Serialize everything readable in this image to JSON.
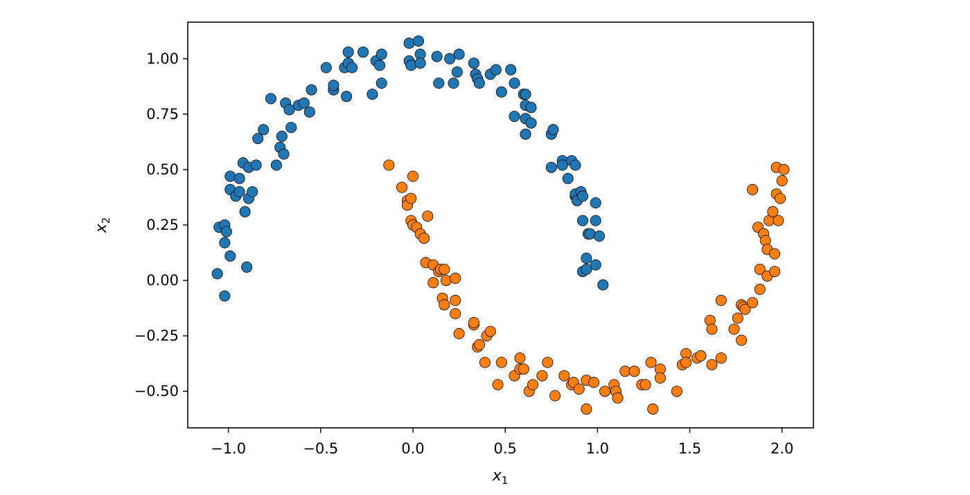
{
  "chart_data": {
    "type": "scatter",
    "title": "",
    "xlabel": "x",
    "xlabel_sub": "1",
    "ylabel": "x",
    "ylabel_sub": "2",
    "xlim": [
      -1.22,
      2.17
    ],
    "ylim": [
      -0.665,
      1.165
    ],
    "xticks": [
      -1.0,
      -0.5,
      0.0,
      0.5,
      1.0,
      1.5,
      2.0
    ],
    "xtick_labels": [
      "−1.0",
      "−0.5",
      "0.0",
      "0.5",
      "1.0",
      "1.5",
      "2.0"
    ],
    "yticks": [
      1.0,
      0.75,
      0.5,
      0.25,
      0.0,
      -0.25,
      -0.5
    ],
    "ytick_labels": [
      "1.00",
      "0.75",
      "0.50",
      "0.25",
      "0.00",
      "−0.25",
      "−0.50"
    ],
    "grid": false,
    "legend": "none",
    "series": [
      {
        "color": "#1f77b4",
        "points": [
          [
            -1.06,
            0.03
          ],
          [
            -1.02,
            -0.07
          ],
          [
            -1.05,
            0.24
          ],
          [
            -1.02,
            0.25
          ],
          [
            -1.01,
            0.22
          ],
          [
            -1.02,
            0.17
          ],
          [
            -0.99,
            0.11
          ],
          [
            -0.99,
            0.47
          ],
          [
            -0.99,
            0.41
          ],
          [
            -0.96,
            0.38
          ],
          [
            -0.94,
            0.4
          ],
          [
            -0.94,
            0.46
          ],
          [
            -0.92,
            0.53
          ],
          [
            -0.91,
            0.31
          ],
          [
            -0.9,
            0.06
          ],
          [
            -0.89,
            0.37
          ],
          [
            -0.89,
            0.51
          ],
          [
            -0.87,
            0.4
          ],
          [
            -0.85,
            0.52
          ],
          [
            -0.84,
            0.64
          ],
          [
            -0.81,
            0.68
          ],
          [
            -0.77,
            0.82
          ],
          [
            -0.74,
            0.52
          ],
          [
            -0.72,
            0.6
          ],
          [
            -0.71,
            0.65
          ],
          [
            -0.7,
            0.57
          ],
          [
            -0.69,
            0.8
          ],
          [
            -0.67,
            0.77
          ],
          [
            -0.66,
            0.69
          ],
          [
            -0.62,
            0.79
          ],
          [
            -0.59,
            0.8
          ],
          [
            -0.56,
            0.76
          ],
          [
            -0.55,
            0.86
          ],
          [
            -0.47,
            0.96
          ],
          [
            -0.43,
            0.86
          ],
          [
            -0.43,
            0.88
          ],
          [
            -0.37,
            0.96
          ],
          [
            -0.36,
            0.83
          ],
          [
            -0.35,
            1.03
          ],
          [
            -0.35,
            0.98
          ],
          [
            -0.33,
            0.96
          ],
          [
            -0.27,
            1.03
          ],
          [
            -0.22,
            0.84
          ],
          [
            -0.2,
            0.99
          ],
          [
            -0.18,
            0.97
          ],
          [
            -0.17,
            1.02
          ],
          [
            -0.17,
            0.89
          ],
          [
            -0.02,
            1.07
          ],
          [
            -0.02,
            0.99
          ],
          [
            -0.01,
            0.97
          ],
          [
            0.03,
            1.08
          ],
          [
            0.04,
            1.02
          ],
          [
            0.04,
            0.98
          ],
          [
            0.13,
            1.01
          ],
          [
            0.14,
            0.89
          ],
          [
            0.2,
            1.0
          ],
          [
            0.22,
            0.89
          ],
          [
            0.24,
            0.94
          ],
          [
            0.25,
            1.02
          ],
          [
            0.33,
            0.98
          ],
          [
            0.34,
            0.93
          ],
          [
            0.35,
            0.91
          ],
          [
            0.36,
            0.89
          ],
          [
            0.42,
            0.93
          ],
          [
            0.45,
            0.95
          ],
          [
            0.48,
            0.85
          ],
          [
            0.53,
            0.95
          ],
          [
            0.55,
            0.89
          ],
          [
            0.55,
            0.74
          ],
          [
            0.6,
            0.84
          ],
          [
            0.61,
            0.84
          ],
          [
            0.61,
            0.79
          ],
          [
            0.61,
            0.73
          ],
          [
            0.61,
            0.66
          ],
          [
            0.64,
            0.78
          ],
          [
            0.64,
            0.71
          ],
          [
            0.75,
            0.51
          ],
          [
            0.75,
            0.66
          ],
          [
            0.76,
            0.68
          ],
          [
            0.81,
            0.54
          ],
          [
            0.81,
            0.52
          ],
          [
            0.84,
            0.46
          ],
          [
            0.86,
            0.54
          ],
          [
            0.88,
            0.52
          ],
          [
            0.88,
            0.38
          ],
          [
            0.88,
            0.39
          ],
          [
            0.89,
            0.36
          ],
          [
            0.91,
            0.4
          ],
          [
            0.92,
            0.38
          ],
          [
            0.92,
            0.27
          ],
          [
            0.92,
            0.04
          ],
          [
            0.94,
            0.1
          ],
          [
            0.94,
            0.05
          ],
          [
            0.95,
            0.21
          ],
          [
            0.96,
            0.21
          ],
          [
            0.99,
            0.35
          ],
          [
            0.99,
            0.27
          ],
          [
            0.99,
            0.07
          ],
          [
            1.01,
            0.2
          ],
          [
            1.03,
            -0.02
          ]
        ]
      },
      {
        "color": "#ff7f0e",
        "points": [
          [
            -0.13,
            0.52
          ],
          [
            -0.06,
            0.42
          ],
          [
            -0.03,
            0.36
          ],
          [
            -0.03,
            0.34
          ],
          [
            -0.01,
            0.27
          ],
          [
            -0.01,
            0.37
          ],
          [
            0.0,
            0.47
          ],
          [
            0.0,
            0.25
          ],
          [
            0.02,
            0.24
          ],
          [
            0.04,
            0.21
          ],
          [
            0.06,
            0.19
          ],
          [
            0.07,
            0.08
          ],
          [
            0.08,
            0.29
          ],
          [
            0.11,
            0.07
          ],
          [
            0.11,
            -0.01
          ],
          [
            0.14,
            0.04
          ],
          [
            0.15,
            0.05
          ],
          [
            0.16,
            -0.08
          ],
          [
            0.17,
            0.05
          ],
          [
            0.17,
            -0.11
          ],
          [
            0.18,
            0.0
          ],
          [
            0.23,
            -0.09
          ],
          [
            0.23,
            -0.15
          ],
          [
            0.23,
            0.01
          ],
          [
            0.25,
            -0.24
          ],
          [
            0.33,
            -0.2
          ],
          [
            0.33,
            -0.19
          ],
          [
            0.35,
            -0.3
          ],
          [
            0.36,
            -0.29
          ],
          [
            0.39,
            -0.37
          ],
          [
            0.4,
            -0.25
          ],
          [
            0.42,
            -0.23
          ],
          [
            0.46,
            -0.47
          ],
          [
            0.48,
            -0.37
          ],
          [
            0.55,
            -0.43
          ],
          [
            0.58,
            -0.4
          ],
          [
            0.58,
            -0.35
          ],
          [
            0.6,
            -0.4
          ],
          [
            0.63,
            -0.5
          ],
          [
            0.65,
            -0.47
          ],
          [
            0.7,
            -0.43
          ],
          [
            0.73,
            -0.37
          ],
          [
            0.77,
            -0.52
          ],
          [
            0.82,
            -0.43
          ],
          [
            0.86,
            -0.47
          ],
          [
            0.87,
            -0.46
          ],
          [
            0.9,
            -0.49
          ],
          [
            0.94,
            -0.45
          ],
          [
            0.94,
            -0.58
          ],
          [
            0.98,
            -0.46
          ],
          [
            1.04,
            -0.5
          ],
          [
            1.09,
            -0.47
          ],
          [
            1.1,
            -0.5
          ],
          [
            1.11,
            -0.53
          ],
          [
            1.15,
            -0.41
          ],
          [
            1.2,
            -0.41
          ],
          [
            1.24,
            -0.47
          ],
          [
            1.26,
            -0.47
          ],
          [
            1.29,
            -0.37
          ],
          [
            1.3,
            -0.58
          ],
          [
            1.34,
            -0.4
          ],
          [
            1.34,
            -0.44
          ],
          [
            1.43,
            -0.5
          ],
          [
            1.46,
            -0.38
          ],
          [
            1.48,
            -0.33
          ],
          [
            1.48,
            -0.37
          ],
          [
            1.54,
            -0.35
          ],
          [
            1.56,
            -0.34
          ],
          [
            1.61,
            -0.18
          ],
          [
            1.62,
            -0.38
          ],
          [
            1.62,
            -0.22
          ],
          [
            1.67,
            -0.35
          ],
          [
            1.67,
            -0.09
          ],
          [
            1.74,
            -0.22
          ],
          [
            1.76,
            -0.17
          ],
          [
            1.78,
            -0.27
          ],
          [
            1.78,
            -0.11
          ],
          [
            1.79,
            -0.12
          ],
          [
            1.8,
            -0.13
          ],
          [
            1.84,
            -0.1
          ],
          [
            1.84,
            0.41
          ],
          [
            1.87,
            0.24
          ],
          [
            1.88,
            0.05
          ],
          [
            1.88,
            -0.04
          ],
          [
            1.9,
            0.21
          ],
          [
            1.91,
            0.18
          ],
          [
            1.92,
            0.02
          ],
          [
            1.92,
            0.14
          ],
          [
            1.93,
            0.27
          ],
          [
            1.95,
            0.31
          ],
          [
            1.96,
            0.12
          ],
          [
            1.96,
            0.04
          ],
          [
            1.97,
            0.51
          ],
          [
            1.97,
            0.39
          ],
          [
            1.98,
            0.27
          ],
          [
            1.99,
            0.37
          ],
          [
            2.0,
            0.45
          ],
          [
            2.01,
            0.5
          ]
        ]
      }
    ]
  }
}
